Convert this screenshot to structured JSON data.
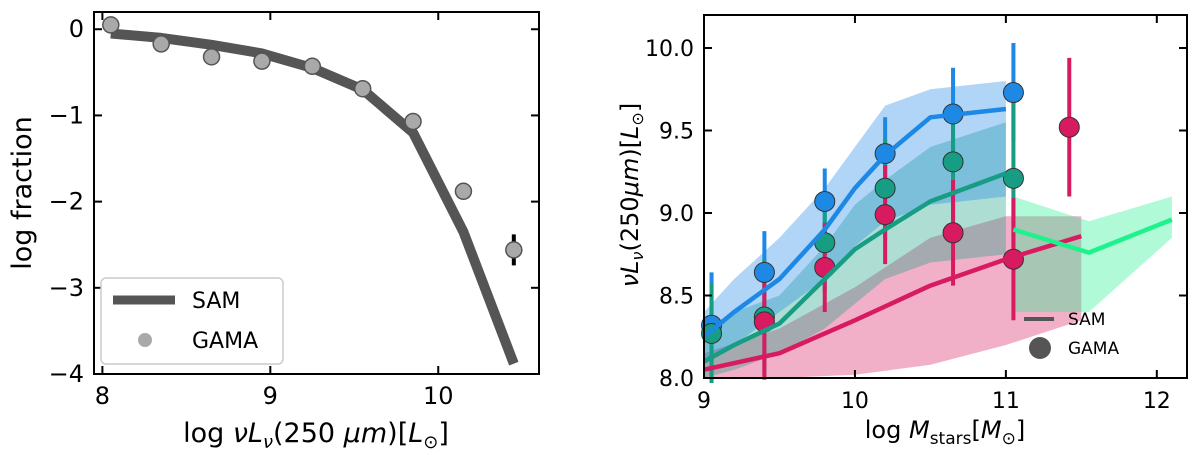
{
  "chart_data": [
    {
      "type": "line",
      "xlabel": "log νL_ν(250 μm)[L_⊙]",
      "ylabel": "log fraction",
      "xlim": [
        7.95,
        10.6
      ],
      "ylim": [
        -4.0,
        0.2
      ],
      "xticks": [
        8,
        9,
        10
      ],
      "yticks": [
        0,
        -1,
        -2,
        -3,
        -4
      ],
      "x_tick_labels": [
        "8",
        "9",
        "10"
      ],
      "y_tick_labels": [
        "0",
        "−1",
        "−2",
        "−3",
        "−4"
      ],
      "legend": {
        "position": "bottom-left",
        "entries": [
          "SAM",
          "GAMA"
        ]
      },
      "grid": false,
      "series": [
        {
          "name": "SAM",
          "kind": "line",
          "color": "#555555",
          "x": [
            8.05,
            8.35,
            8.65,
            8.95,
            9.25,
            9.55,
            9.85,
            10.15,
            10.45
          ],
          "y": [
            -0.05,
            -0.1,
            -0.18,
            -0.28,
            -0.45,
            -0.7,
            -1.2,
            -2.35,
            -3.88
          ]
        },
        {
          "name": "GAMA",
          "kind": "scatter",
          "color": "#a9a9a9",
          "x": [
            8.05,
            8.35,
            8.65,
            8.95,
            9.25,
            9.55,
            9.85,
            10.15,
            10.45
          ],
          "y": [
            0.05,
            -0.17,
            -0.32,
            -0.37,
            -0.43,
            -0.69,
            -1.07,
            -1.88,
            -2.56
          ],
          "yerr": [
            0,
            0,
            0,
            0,
            0,
            0,
            0,
            0,
            0.18
          ]
        }
      ]
    },
    {
      "type": "line",
      "xlabel": "log M_stars[M_⊙]",
      "ylabel": "νL_ν(250μm)[L_⊙]",
      "xlim": [
        9.0,
        12.2
      ],
      "ylim": [
        8.0,
        10.2
      ],
      "xticks": [
        9,
        10,
        11,
        12
      ],
      "yticks": [
        8.0,
        8.5,
        9.0,
        9.5,
        10.0
      ],
      "x_tick_labels": [
        "9",
        "10",
        "11",
        "12"
      ],
      "y_tick_labels": [
        "8.0",
        "8.5",
        "9.0",
        "9.5",
        "10.0"
      ],
      "legend": {
        "position": "bottom-right",
        "entries": [
          "SAM",
          "GAMA"
        ]
      },
      "grid": false,
      "series": [
        {
          "kind": "sam",
          "color": "#1e88e5",
          "x": [
            9.0,
            9.2,
            9.5,
            9.8,
            10.0,
            10.2,
            10.5,
            11.0
          ],
          "y": [
            8.25,
            8.4,
            8.6,
            8.9,
            9.15,
            9.35,
            9.58,
            9.63
          ],
          "band_low": [
            8.1,
            8.2,
            8.4,
            8.6,
            8.8,
            8.95,
            9.05,
            9.1
          ],
          "band_high": [
            8.4,
            8.6,
            8.85,
            9.15,
            9.4,
            9.65,
            9.75,
            9.8
          ]
        },
        {
          "kind": "sam",
          "color": "#169d84",
          "x": [
            9.0,
            9.2,
            9.5,
            9.8,
            10.0,
            10.2,
            10.5,
            11.0
          ],
          "y": [
            8.1,
            8.2,
            8.33,
            8.6,
            8.78,
            8.9,
            9.07,
            9.24
          ],
          "band_low": [
            8.0,
            8.05,
            8.15,
            8.3,
            8.45,
            8.6,
            8.7,
            8.75
          ],
          "band_high": [
            8.25,
            8.4,
            8.5,
            8.8,
            9.05,
            9.2,
            9.4,
            9.55
          ]
        },
        {
          "kind": "sam",
          "color": "#d81b60",
          "x": [
            9.0,
            9.5,
            10.0,
            10.5,
            11.0,
            11.5
          ],
          "y": [
            8.05,
            8.15,
            8.35,
            8.56,
            8.72,
            8.86
          ],
          "band_low": [
            8.0,
            8.0,
            8.02,
            8.08,
            8.2,
            8.35
          ],
          "band_high": [
            8.15,
            8.3,
            8.55,
            8.85,
            8.98,
            8.98
          ]
        },
        {
          "kind": "sam",
          "color": "#1ef28c",
          "x": [
            11.05,
            11.55,
            12.1
          ],
          "y": [
            8.9,
            8.76,
            8.96
          ],
          "band_low": [
            8.4,
            8.4,
            8.85
          ],
          "band_high": [
            9.1,
            8.95,
            9.1
          ]
        },
        {
          "kind": "gama",
          "color": "#1e88e5",
          "x": [
            9.05,
            9.4,
            9.8,
            10.2,
            10.65,
            11.05
          ],
          "y": [
            8.32,
            8.64,
            9.07,
            9.36,
            9.6,
            9.73
          ],
          "yerr": [
            0.32,
            0.25,
            0.2,
            0.22,
            0.28,
            0.3
          ]
        },
        {
          "kind": "gama",
          "color": "#169d84",
          "x": [
            9.05,
            9.4,
            9.8,
            10.2,
            10.65,
            11.05
          ],
          "y": [
            8.27,
            8.37,
            8.82,
            9.15,
            9.31,
            9.21
          ],
          "yerr": [
            0.3,
            0.35,
            0.3,
            0.3,
            0.35,
            0.5
          ]
        },
        {
          "kind": "gama",
          "color": "#d81b60",
          "x": [
            9.4,
            9.8,
            10.2,
            10.65,
            11.05,
            11.42
          ],
          "y": [
            8.34,
            8.67,
            8.99,
            8.88,
            8.72,
            9.52
          ],
          "yerr": [
            0.35,
            0.27,
            0.3,
            0.32,
            0.37,
            0.42
          ]
        }
      ]
    }
  ]
}
